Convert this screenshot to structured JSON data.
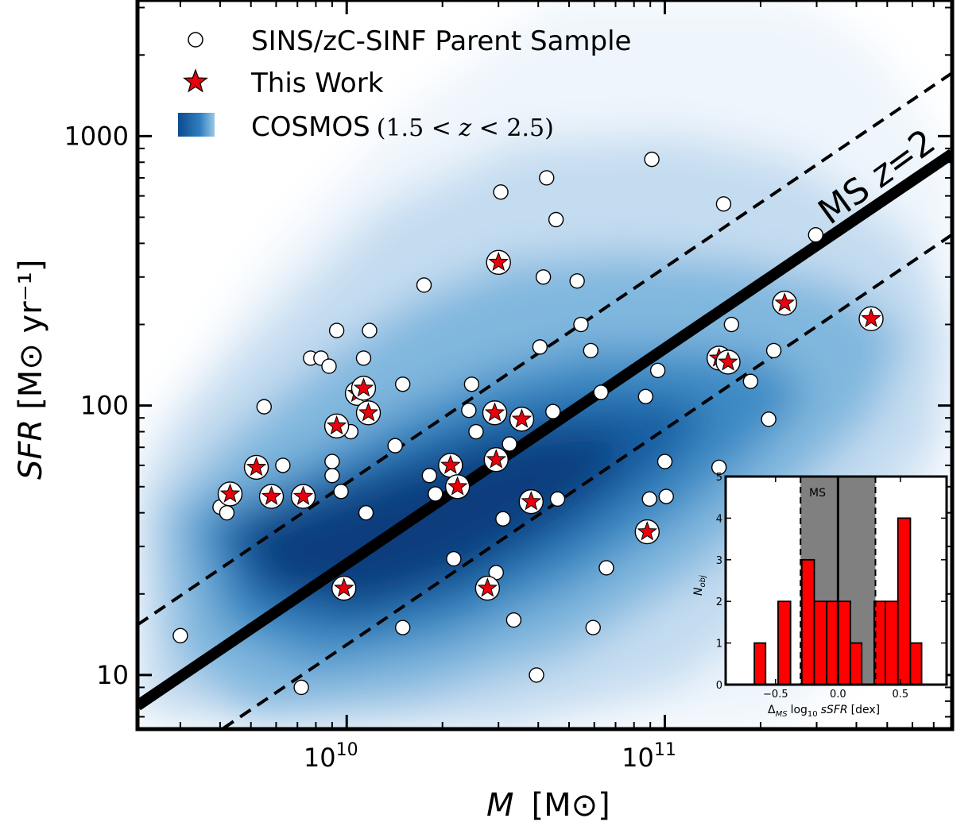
{
  "chart_data": [
    {
      "type": "scatter",
      "xscale": "log",
      "yscale": "log",
      "xlim": [
        2200000000.0,
        800000000000.0
      ],
      "ylim": [
        6.3,
        3200
      ],
      "xlabel": "M",
      "xlabel_unit": "[M⊙]",
      "ylabel": "SFR",
      "ylabel_unit": "[M⊙ yr⁻¹]",
      "x_ticks": [
        {
          "value": 10000000000.0,
          "label_base": "10",
          "label_exp": "10"
        },
        {
          "value": 100000000000.0,
          "label_base": "10",
          "label_exp": "11"
        }
      ],
      "y_ticks": [
        {
          "value": 10,
          "label": "10"
        },
        {
          "value": 100,
          "label": "100"
        },
        {
          "value": 1000,
          "label": "1000"
        }
      ],
      "grid": false,
      "legend": {
        "position": "top-left",
        "entries": [
          {
            "marker": "open-circle",
            "label": "SINS/zC-SINF Parent Sample"
          },
          {
            "marker": "red-star",
            "label": "This Work"
          },
          {
            "marker": "blue-density",
            "label": "COSMOS",
            "label_math": "(1.5 < z < 2.5)"
          }
        ]
      },
      "main_sequence": {
        "label": "MS z=2",
        "points": [
          [
            2200000000.0,
            7.7
          ],
          [
            800000000000.0,
            860
          ]
        ],
        "offset_dex": 0.3
      },
      "series": [
        {
          "name": "SINS/zC-SINF Parent Sample",
          "marker": "open-circle",
          "points": [
            [
              3000000000.0,
              14
            ],
            [
              4000000000.0,
              42
            ],
            [
              4200000000.0,
              40
            ],
            [
              5500000000.0,
              99
            ],
            [
              6300000000.0,
              60
            ],
            [
              7200000000.0,
              9
            ],
            [
              7700000000.0,
              150
            ],
            [
              8300000000.0,
              150
            ],
            [
              8800000000.0,
              140
            ],
            [
              9000000000.0,
              55
            ],
            [
              9000000000.0,
              62
            ],
            [
              9600000000.0,
              48
            ],
            [
              9300000000.0,
              190
            ],
            [
              10300000000.0,
              80
            ],
            [
              11300000000.0,
              150
            ],
            [
              11500000000.0,
              40
            ],
            [
              11800000000.0,
              190
            ],
            [
              12000000000.0,
              95
            ],
            [
              14200000000.0,
              71
            ],
            [
              15000000000.0,
              120
            ],
            [
              15000000000.0,
              15
            ],
            [
              17500000000.0,
              280
            ],
            [
              18200000000.0,
              55
            ],
            [
              19000000000.0,
              47
            ],
            [
              21700000000.0,
              27
            ],
            [
              24200000000.0,
              96
            ],
            [
              24700000000.0,
              120
            ],
            [
              25500000000.0,
              80
            ],
            [
              29500000000.0,
              24
            ],
            [
              30500000000.0,
              620
            ],
            [
              31000000000.0,
              38
            ],
            [
              32500000000.0,
              72
            ],
            [
              33500000000.0,
              16
            ],
            [
              39500000000.0,
              10
            ],
            [
              40500000000.0,
              165
            ],
            [
              41500000000.0,
              300
            ],
            [
              42500000000.0,
              700
            ],
            [
              44500000000.0,
              95
            ],
            [
              45500000000.0,
              490
            ],
            [
              46000000000.0,
              45
            ],
            [
              53000000000.0,
              290
            ],
            [
              54500000000.0,
              200
            ],
            [
              58500000000.0,
              160
            ],
            [
              59500000000.0,
              15
            ],
            [
              63000000000.0,
              112
            ],
            [
              65500000000.0,
              25
            ],
            [
              87000000000.0,
              108
            ],
            [
              89500000000.0,
              45
            ],
            [
              91000000000.0,
              820
            ],
            [
              95000000000.0,
              135
            ],
            [
              100000000000.0,
              62
            ],
            [
              101000000000.0,
              46
            ],
            [
              148000000000.0,
              59
            ],
            [
              153000000000.0,
              560
            ],
            [
              162000000000.0,
              200
            ],
            [
              186000000000.0,
              123
            ],
            [
              212000000000.0,
              89
            ],
            [
              220000000000.0,
              160
            ],
            [
              298000000000.0,
              430
            ]
          ]
        },
        {
          "name": "This Work",
          "marker": "red-star",
          "points": [
            [
              4300000000.0,
              47
            ],
            [
              5200000000.0,
              59
            ],
            [
              5800000000.0,
              46
            ],
            [
              7300000000.0,
              46
            ],
            [
              9300000000.0,
              84
            ],
            [
              9800000000.0,
              21
            ],
            [
              10800000000.0,
              111
            ],
            [
              11300000000.0,
              116
            ],
            [
              11700000000.0,
              94
            ],
            [
              21200000000.0,
              60
            ],
            [
              22300000000.0,
              50
            ],
            [
              27700000000.0,
              21
            ],
            [
              29200000000.0,
              94
            ],
            [
              29500000000.0,
              63
            ],
            [
              30000000000.0,
              340
            ],
            [
              35500000000.0,
              89
            ],
            [
              38000000000.0,
              44
            ],
            [
              88000000000.0,
              34
            ],
            [
              148000000000.0,
              150
            ],
            [
              158000000000.0,
              145
            ],
            [
              238000000000.0,
              240
            ],
            [
              445000000000.0,
              210
            ]
          ]
        }
      ]
    },
    {
      "type": "bar",
      "title": "",
      "xlabel": "Δ",
      "xlabel_sub": "MS",
      "xlabel_rest": "log",
      "xlabel_sub2": "10",
      "xlabel_ital": "sSFR",
      "xlabel_unit": "[dex]",
      "ylabel": "N",
      "ylabel_sub": "obj",
      "xlim": [
        -0.9,
        0.87
      ],
      "ylim": [
        0,
        5
      ],
      "x_ticks": [
        {
          "value": -0.5,
          "label": "−0.5"
        },
        {
          "value": 0.0,
          "label": "0.0"
        },
        {
          "value": 0.5,
          "label": "0.5"
        }
      ],
      "y_ticks": [
        {
          "value": 0,
          "label": "0"
        },
        {
          "value": 1,
          "label": "1"
        },
        {
          "value": 2,
          "label": "2"
        },
        {
          "value": 3,
          "label": "3"
        },
        {
          "value": 4,
          "label": "4"
        },
        {
          "value": 5,
          "label": "5"
        }
      ],
      "ms_label": "MS",
      "ms_band": [
        -0.3,
        0.3
      ],
      "bins": [
        {
          "x0": -0.67,
          "x1": -0.58,
          "count": 1
        },
        {
          "x0": -0.48,
          "x1": -0.38,
          "count": 2
        },
        {
          "x0": -0.29,
          "x1": -0.19,
          "count": 3
        },
        {
          "x0": -0.19,
          "x1": -0.09,
          "count": 2
        },
        {
          "x0": -0.09,
          "x1": 0.0,
          "count": 2
        },
        {
          "x0": 0.0,
          "x1": 0.1,
          "count": 2
        },
        {
          "x0": 0.1,
          "x1": 0.19,
          "count": 1
        },
        {
          "x0": 0.29,
          "x1": 0.38,
          "count": 2
        },
        {
          "x0": 0.38,
          "x1": 0.48,
          "count": 2
        },
        {
          "x0": 0.48,
          "x1": 0.58,
          "count": 4
        },
        {
          "x0": 0.58,
          "x1": 0.67,
          "count": 1
        }
      ]
    }
  ]
}
